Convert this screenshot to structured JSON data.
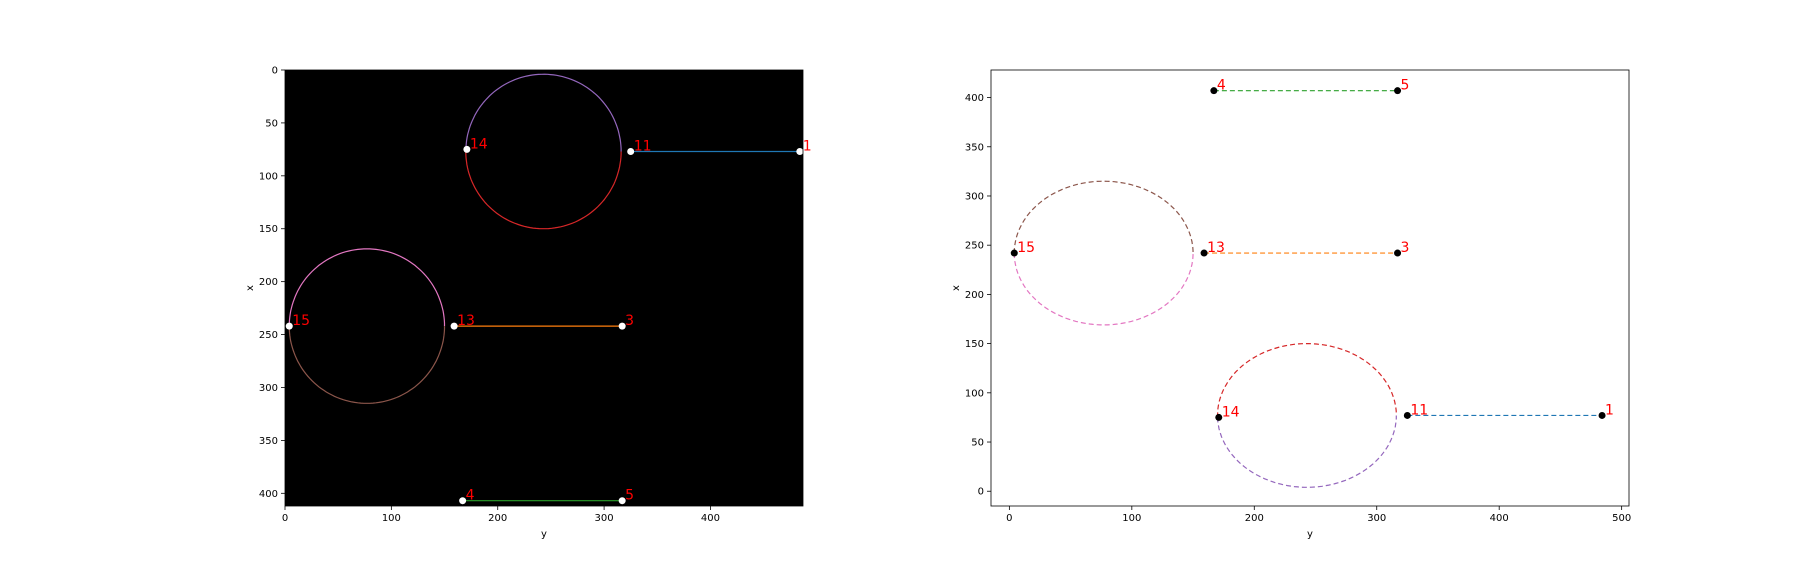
{
  "colors": {
    "point_label": "#ff0000",
    "left_background": "#000000",
    "left_point": "#ffffff",
    "right_point": "#000000"
  },
  "chart_data": [
    {
      "type": "line",
      "panel": "image-overlay",
      "xlabel": "y",
      "ylabel": "x",
      "xlim": [
        0,
        487
      ],
      "ylim": [
        412,
        0
      ],
      "y_inverted": true,
      "x_ticks": [
        0,
        100,
        200,
        300,
        400
      ],
      "y_ticks": [
        0,
        50,
        100,
        150,
        200,
        250,
        300,
        350,
        400
      ],
      "background": "black",
      "line_style": "solid",
      "points": [
        {
          "label": "1",
          "y": 484,
          "x": 77
        },
        {
          "label": "11",
          "y": 325,
          "x": 77
        },
        {
          "label": "14",
          "y": 171,
          "x": 75
        },
        {
          "label": "15",
          "y": 4,
          "x": 242
        },
        {
          "label": "13",
          "y": 159,
          "x": 242
        },
        {
          "label": "3",
          "y": 317,
          "x": 242
        },
        {
          "label": "4",
          "y": 167,
          "x": 407
        },
        {
          "label": "5",
          "y": 317,
          "x": 407
        }
      ],
      "segments": [
        {
          "from": "11",
          "to": "1",
          "shape": "line",
          "color": "#1f77b4"
        },
        {
          "from": "13",
          "to": "3",
          "shape": "line",
          "color": "#ff7f0e"
        },
        {
          "from": "4",
          "to": "5",
          "shape": "line",
          "color": "#2ca02c"
        },
        {
          "from": "14",
          "to": "11",
          "shape": "arc",
          "center": [
            243,
            77
          ],
          "radius": 73,
          "side": "low-x",
          "color": "#9467bd"
        },
        {
          "from": "14",
          "to": "11",
          "shape": "arc",
          "center": [
            243,
            77
          ],
          "radius": 73,
          "side": "high-x",
          "color": "#d62728"
        },
        {
          "from": "15",
          "to": "13",
          "shape": "arc",
          "center": [
            77,
            242
          ],
          "radius": 73,
          "side": "low-x",
          "color": "#e377c2"
        },
        {
          "from": "15",
          "to": "13",
          "shape": "arc",
          "center": [
            77,
            242
          ],
          "radius": 73,
          "side": "high-x",
          "color": "#8c564b"
        }
      ]
    },
    {
      "type": "line",
      "panel": "plot",
      "xlabel": "y",
      "ylabel": "x",
      "xlim": [
        -15,
        506
      ],
      "ylim": [
        -15,
        428
      ],
      "x_ticks": [
        0,
        100,
        200,
        300,
        400,
        500
      ],
      "y_ticks": [
        0,
        50,
        100,
        150,
        200,
        250,
        300,
        350,
        400
      ],
      "background": "white",
      "line_style": "dashed",
      "points": [
        {
          "label": "4",
          "y": 167,
          "x": 407
        },
        {
          "label": "5",
          "y": 317,
          "x": 407
        },
        {
          "label": "15",
          "y": 4,
          "x": 242
        },
        {
          "label": "13",
          "y": 159,
          "x": 242
        },
        {
          "label": "3",
          "y": 317,
          "x": 242
        },
        {
          "label": "14",
          "y": 171,
          "x": 75
        },
        {
          "label": "11",
          "y": 325,
          "x": 77
        },
        {
          "label": "1",
          "y": 484,
          "x": 77
        }
      ],
      "segments": [
        {
          "from": "4",
          "to": "5",
          "shape": "line",
          "color": "#2ca02c"
        },
        {
          "from": "13",
          "to": "3",
          "shape": "line",
          "color": "#ff7f0e"
        },
        {
          "from": "11",
          "to": "1",
          "shape": "line",
          "color": "#1f77b4"
        },
        {
          "from": "15",
          "to": "13",
          "shape": "arc",
          "center": [
            77,
            242
          ],
          "radius": 73,
          "side": "high-x",
          "color": "#8c564b"
        },
        {
          "from": "15",
          "to": "13",
          "shape": "arc",
          "center": [
            77,
            242
          ],
          "radius": 73,
          "side": "low-x",
          "color": "#e377c2"
        },
        {
          "from": "14",
          "to": "11",
          "shape": "arc",
          "center": [
            243,
            77
          ],
          "radius": 73,
          "side": "high-x",
          "color": "#d62728"
        },
        {
          "from": "14",
          "to": "11",
          "shape": "arc",
          "center": [
            243,
            77
          ],
          "radius": 73,
          "side": "low-x",
          "color": "#9467bd"
        }
      ]
    }
  ]
}
